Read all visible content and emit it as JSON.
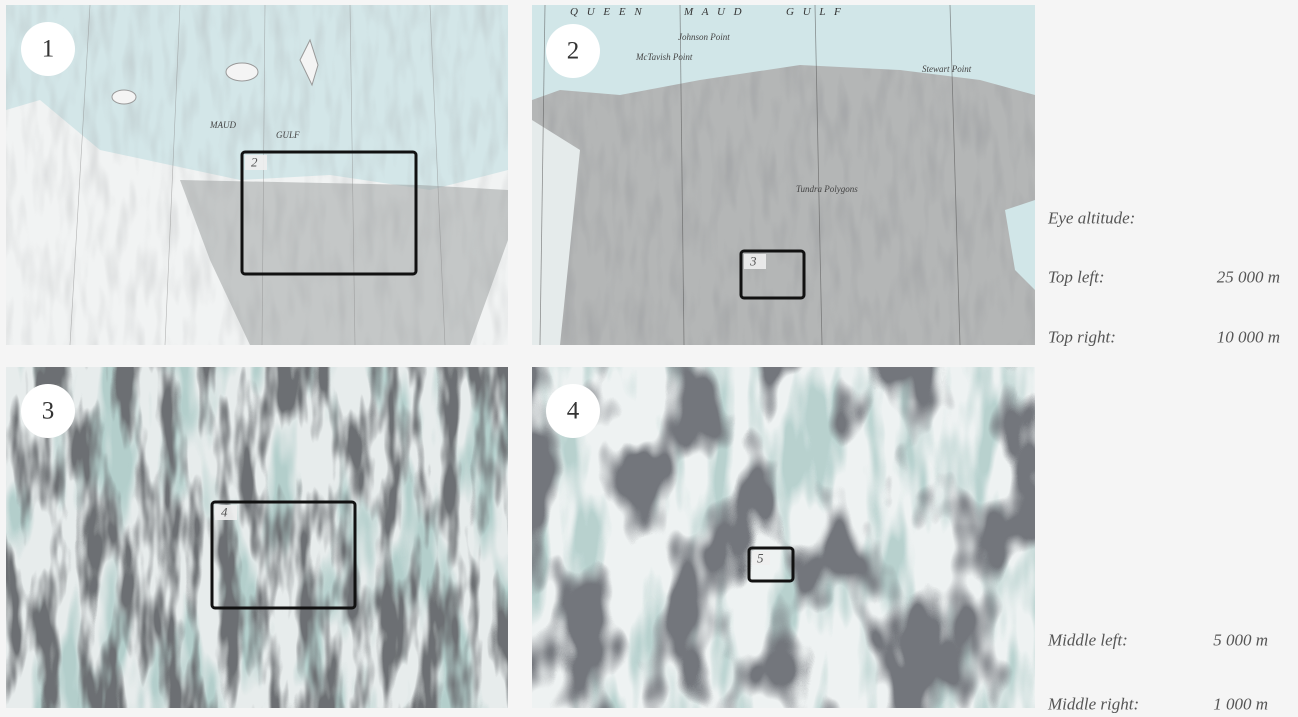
{
  "panels": [
    {
      "number": "1",
      "inset": {
        "label": "2"
      },
      "map_labels": [
        "MAUD",
        "GULF"
      ]
    },
    {
      "number": "2",
      "inset": {
        "label": "3"
      },
      "map_labels": [
        "Q U E E N",
        "M A U D",
        "G U L F",
        "Johnson Point",
        "McTavish Point",
        "Stewart Point",
        "Tundra Polygons"
      ]
    },
    {
      "number": "3",
      "inset": {
        "label": "4"
      }
    },
    {
      "number": "4",
      "inset": {
        "label": "5"
      }
    }
  ],
  "altitudes": {
    "heading": "Eye altitude:",
    "rows": [
      {
        "label": "Top left:",
        "value": "25 000 m"
      },
      {
        "label": "Top right:",
        "value": "10 000 m"
      },
      {
        "label": "Middle left:",
        "value": "5 000 m"
      },
      {
        "label": "Middle right:",
        "value": "1 000 m"
      }
    ]
  }
}
